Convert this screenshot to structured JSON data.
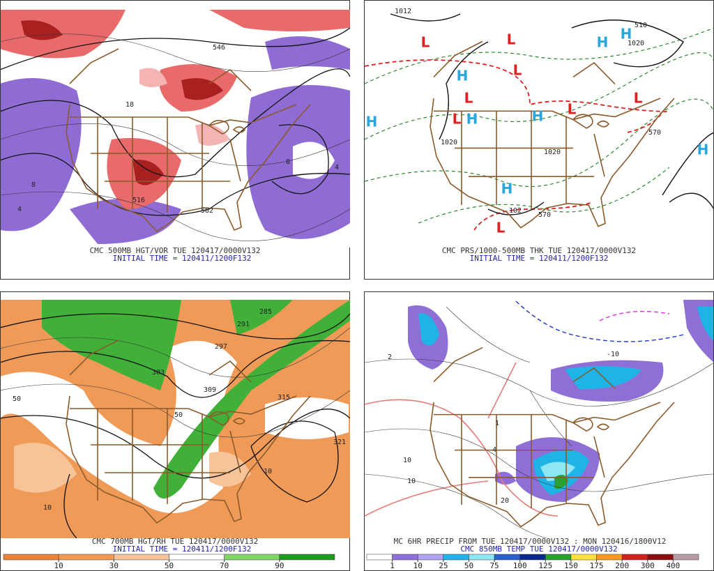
{
  "panels": [
    {
      "caption": "CMC 500MB HGT/VOR TUE 120417/0000V132",
      "initial_time": "INITIAL TIME = 120411/1200F132",
      "labels": [
        "546",
        "18",
        "8",
        "4",
        "516",
        "582",
        "8",
        "4"
      ]
    },
    {
      "caption": "CMC PRS/1000-500MB THK TUE 120417/0000V132",
      "initial_time": "INITIAL TIME = 120411/1200F132",
      "labels": [
        "1012",
        "1020",
        "1020",
        "1020",
        "510",
        "570",
        "570",
        "102"
      ],
      "centers": [
        "L",
        "L",
        "L",
        "L",
        "L",
        "L",
        "L",
        "L",
        "H",
        "H",
        "H",
        "H",
        "H",
        "H",
        "H",
        "H"
      ]
    },
    {
      "caption": "CMC 700MB HGT/RH TUE 120417/0000V132",
      "initial_time": "INITIAL TIME = 120411/1200F132",
      "labels": [
        "285",
        "291",
        "297",
        "303",
        "309",
        "315",
        "321",
        "50",
        "50",
        "10",
        "10"
      ]
    },
    {
      "caption": "MC 6HR PRECIP FROM TUE 120417/0000V132 : MON 120416/1800V12",
      "subcaption": "CMC 850MB TEMP TUE 120417/0000V132",
      "labels": [
        "1",
        "4",
        "2",
        "10",
        "10",
        "-10",
        "20"
      ]
    }
  ],
  "rh_colorbar": {
    "ticks": [
      10,
      30,
      50,
      70,
      90
    ],
    "colors": [
      "#e8823c",
      "#f09a58",
      "#f7c49a",
      "#ffffff",
      "#7fd46a",
      "#1f9a1f"
    ]
  },
  "precip_colorbar": {
    "ticks": [
      1,
      10,
      25,
      50,
      75,
      100,
      125,
      150,
      175,
      200,
      300,
      400
    ],
    "colors": [
      "#ffffff",
      "#8e6fd6",
      "#b0a2ee",
      "#1eb4e6",
      "#8fe6f5",
      "#2a5fc8",
      "#0a2a8a",
      "#2ca02c",
      "#ffe23a",
      "#f79a1e",
      "#d42020",
      "#8a1010",
      "#b89aa8"
    ]
  }
}
